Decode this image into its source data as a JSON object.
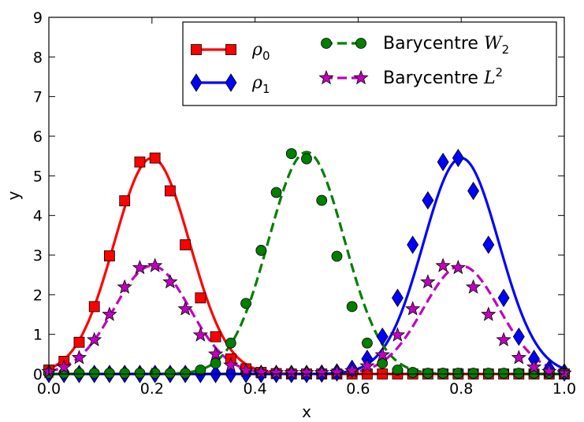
{
  "chart_data": {
    "type": "line",
    "xlabel": "x",
    "ylabel": "y",
    "xlim": [
      0.0,
      1.0
    ],
    "ylim": [
      0,
      9
    ],
    "x_ticks": [
      "0.0",
      "0.2",
      "0.4",
      "0.6",
      "0.8",
      "1.0"
    ],
    "y_ticks": [
      "0",
      "1",
      "2",
      "3",
      "4",
      "5",
      "6",
      "7",
      "8",
      "9"
    ],
    "legend_position": "top-right",
    "grid": false,
    "series": [
      {
        "name": "ρ0",
        "label_base": "ρ",
        "label_sub": "0",
        "color": "#ff0000",
        "marker": "square",
        "linestyle": "solid",
        "curve": {
          "type": "gaussian",
          "mean": 0.2,
          "sigma": 0.0733,
          "amplitude": 5.45
        },
        "x": [
          0.0,
          0.0294,
          0.0588,
          0.0882,
          0.1176,
          0.1471,
          0.1765,
          0.2059,
          0.2353,
          0.2647,
          0.2941,
          0.3235,
          0.3529,
          0.3824,
          0.4118,
          0.4412,
          0.4706,
          0.5,
          0.5294,
          0.5588,
          0.5882,
          0.6176,
          0.6471,
          0.6765,
          0.7059,
          0.7353,
          0.7647,
          0.7941,
          0.8235,
          0.8529,
          0.8824,
          0.9118,
          0.9412,
          0.9706,
          1.0
        ],
        "y": [
          0.1,
          0.32,
          0.8,
          1.7,
          2.98,
          4.37,
          5.35,
          5.45,
          4.62,
          3.26,
          1.92,
          0.94,
          0.38,
          0.13,
          0.04,
          0.01,
          0.0,
          0.0,
          0.0,
          0.0,
          0.0,
          0.0,
          0.0,
          0.0,
          0.0,
          0.0,
          0.0,
          0.0,
          0.0,
          0.0,
          0.0,
          0.0,
          0.0,
          0.0,
          0.0
        ]
      },
      {
        "name": "ρ1",
        "label_base": "ρ",
        "label_sub": "1",
        "color": "#0000ff",
        "marker": "diamond",
        "linestyle": "solid",
        "curve": {
          "type": "gaussian",
          "mean": 0.8,
          "sigma": 0.0733,
          "amplitude": 5.45
        },
        "x": [
          0.0,
          0.0294,
          0.0588,
          0.0882,
          0.1176,
          0.1471,
          0.1765,
          0.2059,
          0.2353,
          0.2647,
          0.2941,
          0.3235,
          0.3529,
          0.3824,
          0.4118,
          0.4412,
          0.4706,
          0.5,
          0.5294,
          0.5588,
          0.5882,
          0.6176,
          0.6471,
          0.6765,
          0.7059,
          0.7353,
          0.7647,
          0.7941,
          0.8235,
          0.8529,
          0.8824,
          0.9118,
          0.9412,
          0.9706,
          1.0
        ],
        "y": [
          0.0,
          0.0,
          0.0,
          0.0,
          0.0,
          0.0,
          0.0,
          0.0,
          0.0,
          0.0,
          0.0,
          0.0,
          0.0,
          0.0,
          0.0,
          0.0,
          0.0,
          0.0,
          0.01,
          0.04,
          0.13,
          0.38,
          0.94,
          1.92,
          3.26,
          4.38,
          5.35,
          5.45,
          4.62,
          3.26,
          1.92,
          0.94,
          0.38,
          0.13,
          0.04
        ]
      },
      {
        "name": "Barycentre W2",
        "label_base": "Barycentre ",
        "label_math": "W",
        "label_sub": "2",
        "color": "#007f00",
        "marker": "circle",
        "linestyle": "dashed",
        "curve": {
          "type": "gaussian",
          "mean": 0.5,
          "sigma": 0.0733,
          "amplitude": 5.6
        },
        "x": [
          0.0,
          0.0294,
          0.0588,
          0.0882,
          0.1176,
          0.1471,
          0.1765,
          0.2059,
          0.2353,
          0.2647,
          0.2941,
          0.3235,
          0.3529,
          0.3824,
          0.4118,
          0.4412,
          0.4706,
          0.5,
          0.5294,
          0.5588,
          0.5882,
          0.6176,
          0.6471,
          0.6765,
          0.7059,
          0.7353,
          0.7647,
          0.7941,
          0.8235,
          0.8529,
          0.8824,
          0.9118,
          0.9412,
          0.9706,
          1.0
        ],
        "y": [
          0.02,
          0.02,
          0.02,
          0.02,
          0.02,
          0.02,
          0.02,
          0.02,
          0.02,
          0.02,
          0.1,
          0.27,
          0.78,
          1.78,
          3.12,
          4.58,
          5.56,
          5.43,
          4.38,
          2.97,
          1.7,
          0.78,
          0.27,
          0.1,
          0.04,
          0.02,
          0.02,
          0.02,
          0.02,
          0.02,
          0.02,
          0.02,
          0.02,
          0.02,
          0.02
        ]
      },
      {
        "name": "Barycentre L2",
        "label_base": "Barycentre ",
        "label_math": "L",
        "label_sup": "2",
        "color": "#bf00bf",
        "marker": "star",
        "linestyle": "dashed",
        "curve": {
          "type": "two_gaussians",
          "means": [
            0.2,
            0.8
          ],
          "sigma": 0.0733,
          "amplitude": 2.73
        },
        "x": [
          0.0,
          0.0294,
          0.0588,
          0.0882,
          0.1176,
          0.1471,
          0.1765,
          0.2059,
          0.2353,
          0.2647,
          0.2941,
          0.3235,
          0.3529,
          0.3824,
          0.4118,
          0.4412,
          0.4706,
          0.5,
          0.5294,
          0.5588,
          0.5882,
          0.6176,
          0.6471,
          0.6765,
          0.7059,
          0.7353,
          0.7647,
          0.7941,
          0.8235,
          0.8529,
          0.8824,
          0.9118,
          0.9412,
          0.9706,
          1.0
        ],
        "y": [
          0.06,
          0.17,
          0.41,
          0.86,
          1.5,
          2.19,
          2.68,
          2.73,
          2.32,
          1.64,
          0.98,
          0.5,
          0.22,
          0.08,
          0.04,
          0.03,
          0.03,
          0.03,
          0.03,
          0.04,
          0.08,
          0.2,
          0.48,
          0.98,
          1.64,
          2.32,
          2.73,
          2.68,
          2.19,
          1.5,
          0.86,
          0.41,
          0.17,
          0.06,
          0.02
        ]
      }
    ]
  }
}
